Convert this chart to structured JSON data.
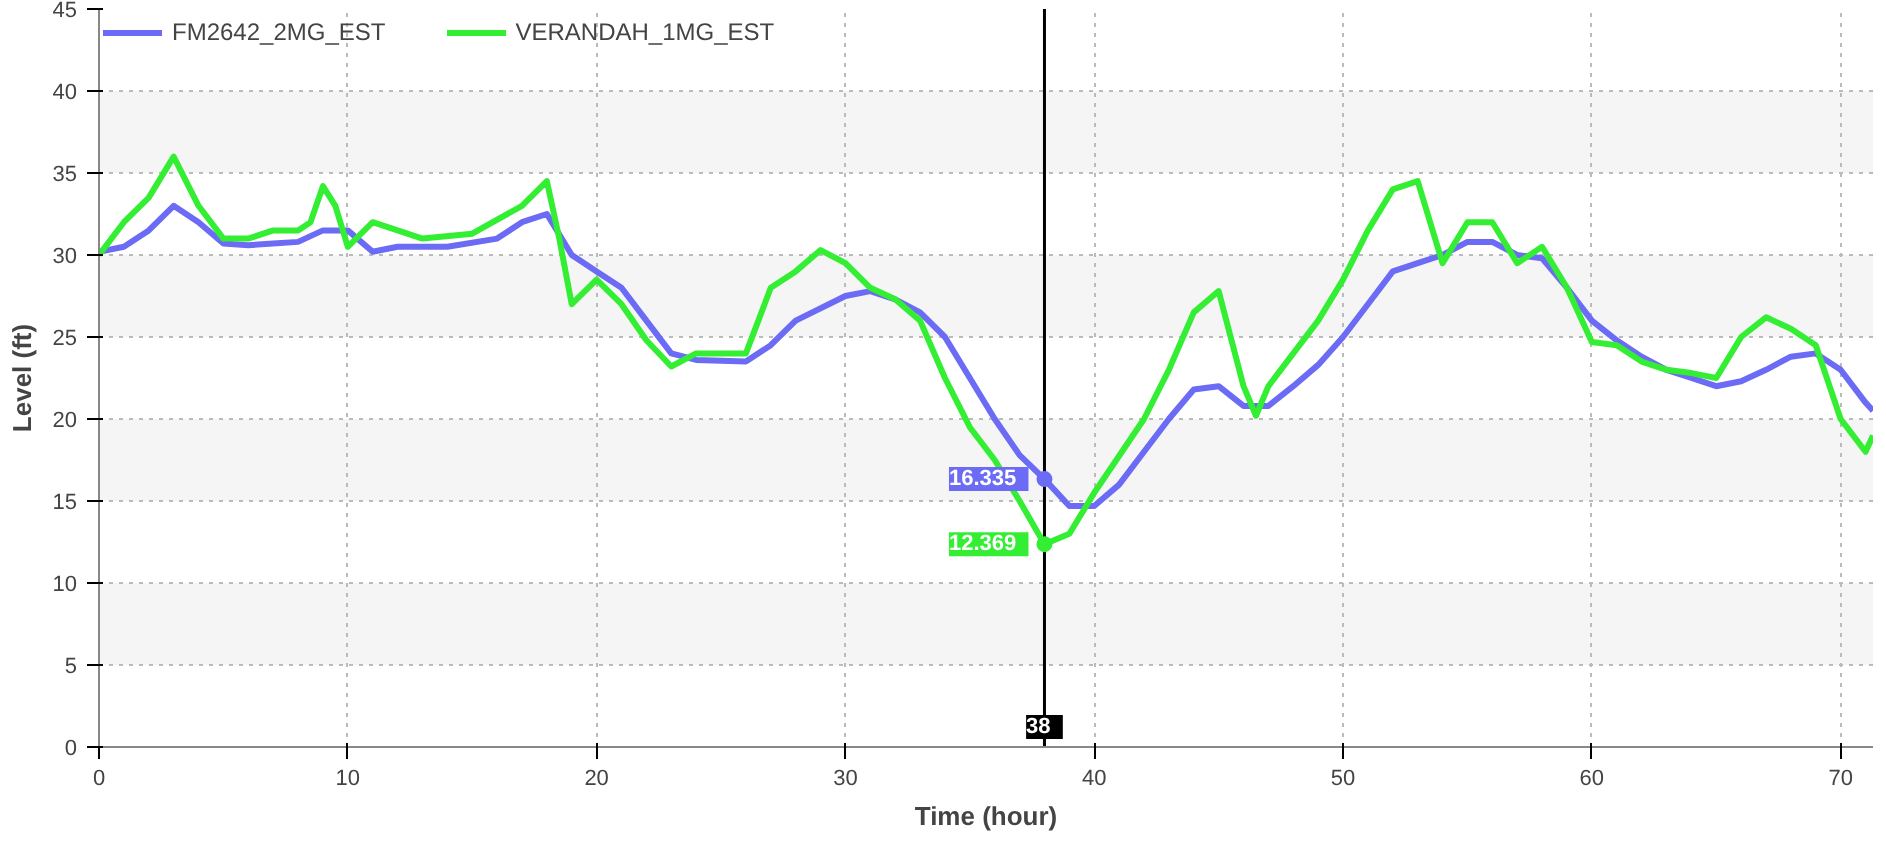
{
  "chart_data": {
    "type": "line",
    "xlabel": "Time (hour)",
    "ylabel": "Level (ft)",
    "xlim": [
      0,
      71.3
    ],
    "ylim": [
      0,
      45
    ],
    "xticks": [
      0,
      10,
      20,
      30,
      40,
      50,
      60,
      70
    ],
    "yticks": [
      0,
      5,
      10,
      15,
      20,
      25,
      30,
      35,
      40,
      45
    ],
    "grid": true,
    "legend": "top left",
    "marker": "none",
    "line_style": "solid",
    "bands": [
      {
        "axis": "y",
        "from": 5,
        "to": 10,
        "color": "#f5f5f5"
      },
      {
        "axis": "y",
        "from": 15,
        "to": 20,
        "color": "#f5f5f5"
      },
      {
        "axis": "y",
        "from": 25,
        "to": 30,
        "color": "#f5f5f5"
      },
      {
        "axis": "y",
        "from": 35,
        "to": 40,
        "color": "#f5f5f5"
      }
    ],
    "ref_lines": [
      {
        "axis": "x",
        "value": 38,
        "label": "38",
        "color": "#000000"
      }
    ],
    "annotations": [
      {
        "text": "16.335",
        "x": 38,
        "y": 16.335
      },
      {
        "text": "12.369",
        "x": 38,
        "y": 12.369
      }
    ],
    "series": [
      {
        "name": "FM2642_2MG_EST",
        "color": "#6b6bf5",
        "x": [
          0,
          1,
          2,
          3,
          4,
          5,
          6,
          7,
          8,
          9,
          10,
          11,
          12,
          14,
          16,
          17,
          18,
          19,
          20,
          21,
          22,
          23,
          24,
          26,
          27,
          28,
          30,
          31,
          32,
          33,
          34,
          35,
          36,
          37,
          38,
          39,
          40,
          41,
          42,
          43,
          44,
          45,
          46,
          47,
          48,
          49,
          50,
          51,
          52,
          53,
          54,
          55,
          56,
          57,
          58,
          59,
          60,
          61,
          62,
          63,
          64,
          65,
          66,
          67,
          68,
          69,
          70,
          71,
          71.3
        ],
        "values": [
          30.2,
          30.5,
          31.5,
          33,
          32,
          30.7,
          30.6,
          30.7,
          30.8,
          31.5,
          31.5,
          30.2,
          30.5,
          30.5,
          31,
          32,
          32.5,
          30,
          29,
          28,
          26,
          24,
          23.6,
          23.5,
          24.5,
          26,
          27.5,
          27.8,
          27.3,
          26.5,
          25,
          22.5,
          20,
          17.8,
          16.335,
          14.7,
          14.7,
          16,
          18,
          20,
          21.8,
          22,
          20.8,
          20.8,
          22,
          23.3,
          25,
          27,
          29,
          29.5,
          30,
          30.8,
          30.8,
          30,
          29.8,
          28,
          26,
          24.8,
          23.8,
          23,
          22.5,
          22,
          22.3,
          23,
          23.8,
          24,
          23,
          21,
          20.5
        ]
      },
      {
        "name": "VERANDAH_1MG_EST",
        "color": "#33ee33",
        "x": [
          0,
          0.5,
          1,
          2,
          3,
          4,
          5,
          6,
          7,
          8,
          8.5,
          9,
          9.5,
          10,
          11,
          12,
          13,
          15,
          17,
          18,
          18.5,
          19,
          20,
          21,
          22,
          23,
          24,
          26,
          27,
          28,
          29,
          30,
          31,
          32,
          33,
          34,
          35,
          36,
          37,
          38,
          39,
          40,
          42,
          43,
          44,
          45,
          46,
          46.5,
          47,
          48,
          49,
          50,
          51,
          52,
          53,
          54,
          55,
          56,
          57,
          58,
          59,
          60,
          61,
          62,
          63,
          64,
          65,
          66,
          67,
          68,
          69,
          70,
          71,
          71.3
        ],
        "values": [
          30,
          31,
          32,
          33.5,
          36,
          33,
          31,
          31,
          31.5,
          31.5,
          32,
          34.2,
          33,
          30.5,
          32,
          31.5,
          31,
          31.3,
          33,
          34.5,
          31,
          27,
          28.5,
          27,
          24.8,
          23.2,
          24,
          24,
          28,
          29,
          30.3,
          29.5,
          28,
          27.3,
          26,
          22.5,
          19.5,
          17.5,
          15,
          12.369,
          13,
          15.5,
          20,
          23,
          26.5,
          27.8,
          22,
          20.2,
          22,
          24,
          26,
          28.5,
          31.5,
          34,
          34.5,
          29.5,
          32,
          32,
          29.5,
          30.5,
          28,
          24.7,
          24.5,
          23.5,
          23,
          22.8,
          22.5,
          25,
          26.2,
          25.5,
          24.5,
          20,
          18,
          19
        ]
      }
    ]
  }
}
